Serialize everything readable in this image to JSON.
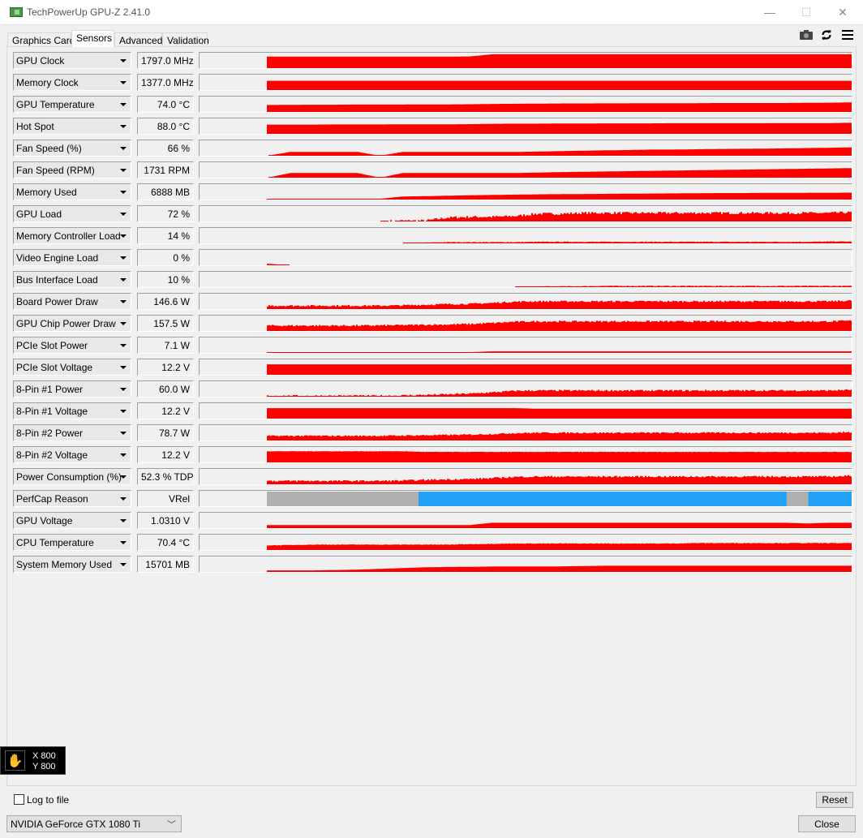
{
  "window": {
    "title": "TechPowerUp GPU-Z 2.41.0",
    "minimize": "—",
    "maximize": "☐",
    "close": "✕"
  },
  "tabs": [
    {
      "label": "Graphics Card",
      "active": false
    },
    {
      "label": "Sensors",
      "active": true
    },
    {
      "label": "Advanced",
      "active": false
    },
    {
      "label": "Validation",
      "active": false
    }
  ],
  "toolbar": {
    "icons": [
      "camera-icon",
      "refresh-icon",
      "menu-icon"
    ]
  },
  "colors": {
    "graph": "#ff0000",
    "perfcap_idle": "#b0b0b0",
    "perfcap_vrel": "#22a2f6"
  },
  "sensors": [
    {
      "name": "GPU Clock",
      "value": "1797.0 MHz",
      "history": [
        null,
        null,
        null,
        0.75,
        0.75,
        0.75,
        0.75,
        0.75,
        0.75,
        0.75,
        0.75,
        0.75,
        0.76,
        0.9,
        0.9,
        0.9,
        0.9,
        0.9,
        0.9,
        0.9,
        0.9,
        0.9,
        0.9,
        0.9,
        0.9,
        0.9,
        0.9,
        0.9,
        0.9,
        0.9
      ],
      "noise": 0
    },
    {
      "name": "Memory Clock",
      "value": "1377.0 MHz",
      "history": [
        null,
        null,
        null,
        0.6,
        0.6,
        0.6,
        0.6,
        0.6,
        0.6,
        0.6,
        0.6,
        0.6,
        0.6,
        0.6,
        0.6,
        0.6,
        0.6,
        0.6,
        0.6,
        0.6,
        0.6,
        0.6,
        0.6,
        0.6,
        0.6,
        0.6,
        0.6,
        0.6,
        0.6,
        0.6
      ],
      "noise": 0
    },
    {
      "name": "GPU Temperature",
      "value": "74.0 °C",
      "history": [
        null,
        null,
        null,
        0.45,
        0.46,
        0.47,
        0.47,
        0.48,
        0.48,
        0.48,
        0.49,
        0.49,
        0.5,
        0.52,
        0.53,
        0.54,
        0.55,
        0.55,
        0.56,
        0.56,
        0.57,
        0.57,
        0.57,
        0.58,
        0.58,
        0.58,
        0.58,
        0.59,
        0.6,
        0.62
      ],
      "noise": 0
    },
    {
      "name": "Hot Spot",
      "value": "88.0 °C",
      "history": [
        null,
        null,
        null,
        0.6,
        0.6,
        0.6,
        0.61,
        0.61,
        0.61,
        0.62,
        0.62,
        0.62,
        0.63,
        0.65,
        0.66,
        0.66,
        0.67,
        0.67,
        0.68,
        0.68,
        0.68,
        0.69,
        0.69,
        0.69,
        0.69,
        0.69,
        0.7,
        0.7,
        0.7,
        0.72
      ],
      "noise": 0
    },
    {
      "name": "Fan Speed (%)",
      "value": "66 %",
      "history": [
        null,
        null,
        null,
        0,
        0.25,
        0.25,
        0.25,
        0.25,
        0,
        0.25,
        0.25,
        0.25,
        0.25,
        0.25,
        0.25,
        0.27,
        0.3,
        0.33,
        0.35,
        0.37,
        0.4,
        0.4,
        0.42,
        0.44,
        0.45,
        0.46,
        0.48,
        0.5,
        0.52,
        0.55
      ],
      "noise": 0
    },
    {
      "name": "Fan Speed (RPM)",
      "value": "1731 RPM",
      "history": [
        null,
        null,
        null,
        0,
        0.3,
        0.3,
        0.3,
        0.3,
        0,
        0.3,
        0.3,
        0.3,
        0.3,
        0.3,
        0.3,
        0.33,
        0.36,
        0.38,
        0.4,
        0.42,
        0.44,
        0.46,
        0.48,
        0.5,
        0.52,
        0.54,
        0.56,
        0.58,
        0.6,
        0.62
      ],
      "noise": 0
    },
    {
      "name": "Memory Used",
      "value": "6888 MB",
      "history": [
        null,
        null,
        null,
        0.05,
        0.05,
        0.05,
        0.05,
        0.05,
        0.05,
        0.2,
        0.22,
        0.25,
        0.28,
        0.3,
        0.32,
        0.34,
        0.35,
        0.36,
        0.37,
        0.38,
        0.39,
        0.4,
        0.41,
        0.42,
        0.42,
        0.43,
        0.43,
        0.44,
        0.44,
        0.45
      ],
      "noise": 0
    },
    {
      "name": "GPU Load",
      "value": "72 %",
      "history": [
        null,
        null,
        null,
        0,
        0,
        0,
        0,
        0,
        0,
        0.05,
        0.05,
        0.25,
        0.3,
        0.3,
        0.35,
        0.5,
        0.5,
        0.55,
        0.55,
        0.55,
        0.55,
        0.55,
        0.55,
        0.55,
        0.55,
        0.55,
        0.55,
        0.55,
        0.55,
        0.6
      ],
      "noise": 0.15
    },
    {
      "name": "Memory Controller Load",
      "value": "14 %",
      "history": [
        null,
        null,
        null,
        0,
        0,
        0,
        0,
        0,
        0,
        0,
        0.05,
        0.08,
        0.08,
        0.08,
        0.08,
        0.1,
        0.1,
        0.1,
        0.1,
        0.1,
        0.1,
        0.1,
        0.1,
        0.1,
        0.1,
        0.1,
        0.1,
        0.1,
        0.12,
        0.12
      ],
      "noise": 0.03
    },
    {
      "name": "Video Engine Load",
      "value": "0 %",
      "history": [
        null,
        null,
        null,
        0.1,
        0,
        0,
        0,
        0,
        0,
        0,
        0,
        0,
        0,
        0,
        0,
        0,
        0,
        0,
        0,
        0,
        0,
        0,
        0,
        0,
        0,
        0,
        0,
        0,
        0,
        0
      ],
      "noise": 0
    },
    {
      "name": "Bus Interface Load",
      "value": "10 %",
      "history": [
        null,
        null,
        null,
        0,
        0,
        0,
        0,
        0,
        0,
        0,
        0,
        0,
        0,
        0,
        0,
        0.05,
        0.05,
        0.06,
        0.08,
        0.08,
        0.08,
        0.08,
        0.08,
        0.08,
        0.08,
        0.08,
        0.08,
        0.08,
        0.08,
        0.08
      ],
      "noise": 0.04
    },
    {
      "name": "Board Power Draw",
      "value": "146.6 W",
      "history": [
        null,
        null,
        null,
        0.22,
        0.22,
        0.22,
        0.22,
        0.22,
        0.22,
        0.24,
        0.28,
        0.32,
        0.34,
        0.4,
        0.48,
        0.5,
        0.5,
        0.5,
        0.5,
        0.5,
        0.5,
        0.5,
        0.5,
        0.5,
        0.5,
        0.5,
        0.5,
        0.5,
        0.5,
        0.55
      ],
      "noise": 0.1
    },
    {
      "name": "GPU Chip Power Draw",
      "value": "157.5 W",
      "history": [
        null,
        null,
        null,
        0.35,
        0.35,
        0.35,
        0.35,
        0.35,
        0.36,
        0.38,
        0.4,
        0.42,
        0.45,
        0.52,
        0.6,
        0.62,
        0.62,
        0.62,
        0.62,
        0.62,
        0.62,
        0.62,
        0.62,
        0.62,
        0.62,
        0.62,
        0.62,
        0.62,
        0.62,
        0.66
      ],
      "noise": 0.1
    },
    {
      "name": "PCIe Slot Power",
      "value": "7.1 W",
      "history": [
        null,
        null,
        null,
        0.05,
        0.05,
        0.05,
        0.05,
        0.05,
        0.05,
        0.05,
        0.05,
        0.05,
        0.05,
        0.1,
        0.1,
        0.1,
        0.1,
        0.1,
        0.1,
        0.1,
        0.1,
        0.1,
        0.1,
        0.1,
        0.1,
        0.1,
        0.1,
        0.1,
        0.1,
        0.1
      ],
      "noise": 0
    },
    {
      "name": "PCIe Slot Voltage",
      "value": "12.2 V",
      "history": [
        null,
        null,
        null,
        0.68,
        0.68,
        0.68,
        0.68,
        0.68,
        0.68,
        0.68,
        0.68,
        0.68,
        0.68,
        0.68,
        0.68,
        0.68,
        0.68,
        0.68,
        0.68,
        0.68,
        0.68,
        0.68,
        0.68,
        0.68,
        0.68,
        0.68,
        0.68,
        0.68,
        0.68,
        0.68
      ],
      "noise": 0
    },
    {
      "name": "8-Pin #1 Power",
      "value": "60.0 W",
      "history": [
        null,
        null,
        null,
        0.06,
        0.06,
        0.06,
        0.06,
        0.06,
        0.06,
        0.08,
        0.12,
        0.15,
        0.2,
        0.28,
        0.38,
        0.4,
        0.4,
        0.4,
        0.4,
        0.4,
        0.4,
        0.4,
        0.4,
        0.4,
        0.4,
        0.4,
        0.4,
        0.4,
        0.4,
        0.45
      ],
      "noise": 0.1
    },
    {
      "name": "8-Pin #1 Voltage",
      "value": "12.2 V",
      "history": [
        null,
        null,
        null,
        0.68,
        0.68,
        0.68,
        0.68,
        0.68,
        0.68,
        0.68,
        0.68,
        0.68,
        0.68,
        0.68,
        0.68,
        0.64,
        0.64,
        0.64,
        0.64,
        0.64,
        0.64,
        0.64,
        0.64,
        0.64,
        0.64,
        0.64,
        0.64,
        0.64,
        0.64,
        0.64
      ],
      "noise": 0
    },
    {
      "name": "8-Pin #2 Power",
      "value": "78.7 W",
      "history": [
        null,
        null,
        null,
        0.3,
        0.3,
        0.3,
        0.3,
        0.3,
        0.3,
        0.32,
        0.34,
        0.36,
        0.38,
        0.42,
        0.48,
        0.5,
        0.5,
        0.5,
        0.5,
        0.5,
        0.5,
        0.5,
        0.5,
        0.5,
        0.5,
        0.5,
        0.5,
        0.5,
        0.5,
        0.54
      ],
      "noise": 0.08
    },
    {
      "name": "8-Pin #2 Voltage",
      "value": "12.2 V",
      "history": [
        null,
        null,
        null,
        0.72,
        0.72,
        0.72,
        0.72,
        0.72,
        0.72,
        0.72,
        0.68,
        0.68,
        0.68,
        0.68,
        0.68,
        0.68,
        0.68,
        0.68,
        0.68,
        0.68,
        0.68,
        0.68,
        0.68,
        0.68,
        0.68,
        0.68,
        0.68,
        0.68,
        0.68,
        0.68
      ],
      "noise": 0.02
    },
    {
      "name": "Power Consumption (%)",
      "value": "52.3 % TDP",
      "history": [
        null,
        null,
        null,
        0.22,
        0.22,
        0.22,
        0.22,
        0.22,
        0.22,
        0.24,
        0.28,
        0.32,
        0.34,
        0.4,
        0.48,
        0.5,
        0.5,
        0.5,
        0.5,
        0.5,
        0.5,
        0.5,
        0.5,
        0.5,
        0.5,
        0.5,
        0.5,
        0.5,
        0.5,
        0.55
      ],
      "noise": 0.1
    },
    {
      "name": "PerfCap Reason",
      "value": "VRel",
      "perfcap": [
        "idle",
        "idle",
        "idle",
        "idle",
        "idle",
        "idle",
        "idle",
        "idle",
        "idle",
        "idle",
        "vrel",
        "vrel",
        "vrel",
        "vrel",
        "vrel",
        "vrel",
        "vrel",
        "vrel",
        "vrel",
        "vrel",
        "vrel",
        "vrel",
        "vrel",
        "vrel",
        "vrel",
        "vrel",
        "vrel",
        "idle",
        "vrel",
        "vrel"
      ]
    },
    {
      "name": "GPU Voltage",
      "value": "1.0310 V",
      "history": [
        null,
        null,
        null,
        0.2,
        0.2,
        0.2,
        0.2,
        0.2,
        0.2,
        0.2,
        0.2,
        0.2,
        0.2,
        0.35,
        0.35,
        0.35,
        0.35,
        0.35,
        0.35,
        0.35,
        0.35,
        0.35,
        0.35,
        0.35,
        0.35,
        0.35,
        0.35,
        0.3,
        0.35,
        0.35
      ],
      "noise": 0
    },
    {
      "name": "CPU Temperature",
      "value": "70.4 °C",
      "history": [
        null,
        null,
        null,
        0.3,
        0.32,
        0.35,
        0.35,
        0.35,
        0.35,
        0.35,
        0.35,
        0.35,
        0.38,
        0.4,
        0.42,
        0.42,
        0.42,
        0.42,
        0.42,
        0.42,
        0.42,
        0.42,
        0.45,
        0.45,
        0.45,
        0.45,
        0.45,
        0.45,
        0.45,
        0.45
      ],
      "noise": 0.03
    },
    {
      "name": "System Memory Used",
      "value": "15701 MB",
      "history": [
        null,
        null,
        null,
        0.1,
        0.1,
        0.1,
        0.12,
        0.15,
        0.2,
        0.25,
        0.3,
        0.32,
        0.33,
        0.35,
        0.36,
        0.36,
        0.36,
        0.38,
        0.4,
        0.4,
        0.4,
        0.4,
        0.4,
        0.4,
        0.4,
        0.4,
        0.4,
        0.4,
        0.4,
        0.4
      ],
      "noise": 0
    }
  ],
  "overlay": {
    "x_label": "X 800",
    "y_label": "Y 800"
  },
  "footer": {
    "log_to_file_label": "Log to file",
    "log_to_file_checked": false,
    "reset_label": "Reset",
    "gpu_select_value": "NVIDIA GeForce GTX 1080 Ti",
    "close_label": "Close"
  }
}
